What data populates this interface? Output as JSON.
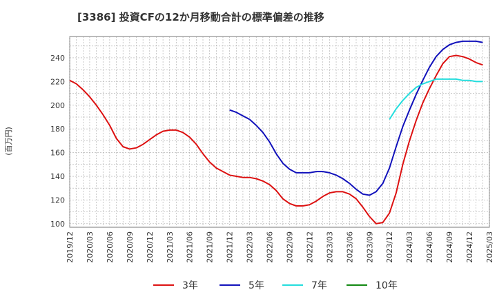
{
  "chart_data": {
    "type": "line",
    "title": "[3386]  投資CFの12か月移動合計の標準偏差の推移",
    "ylabel": "(百万円)",
    "xlabel": "",
    "ylim": [
      97,
      258
    ],
    "yticks": [
      100,
      120,
      140,
      160,
      180,
      200,
      220,
      240
    ],
    "xticks": [
      "2019/12",
      "2020/03",
      "2020/06",
      "2020/09",
      "2020/12",
      "2021/03",
      "2021/06",
      "2021/09",
      "2021/12",
      "2022/03",
      "2022/06",
      "2022/09",
      "2022/12",
      "2023/03",
      "2023/06",
      "2023/09",
      "2023/12",
      "2024/03",
      "2024/06",
      "2024/09",
      "2024/12",
      "2025/03"
    ],
    "grid": true,
    "legend": "bottom",
    "series": [
      {
        "name": "3年",
        "color": "#dd1111",
        "points": [
          [
            "2019/12",
            221
          ],
          [
            "2020/01",
            218
          ],
          [
            "2020/02",
            213
          ],
          [
            "2020/03",
            207
          ],
          [
            "2020/04",
            200
          ],
          [
            "2020/05",
            192
          ],
          [
            "2020/06",
            183
          ],
          [
            "2020/07",
            172
          ],
          [
            "2020/08",
            165
          ],
          [
            "2020/09",
            163
          ],
          [
            "2020/10",
            164
          ],
          [
            "2020/11",
            167
          ],
          [
            "2020/12",
            171
          ],
          [
            "2021/01",
            175
          ],
          [
            "2021/02",
            178
          ],
          [
            "2021/03",
            179
          ],
          [
            "2021/04",
            179
          ],
          [
            "2021/05",
            177
          ],
          [
            "2021/06",
            173
          ],
          [
            "2021/07",
            167
          ],
          [
            "2021/08",
            159
          ],
          [
            "2021/09",
            152
          ],
          [
            "2021/10",
            147
          ],
          [
            "2021/11",
            144
          ],
          [
            "2021/12",
            141
          ],
          [
            "2022/01",
            140
          ],
          [
            "2022/02",
            139
          ],
          [
            "2022/03",
            139
          ],
          [
            "2022/04",
            138
          ],
          [
            "2022/05",
            136
          ],
          [
            "2022/06",
            133
          ],
          [
            "2022/07",
            128
          ],
          [
            "2022/08",
            121
          ],
          [
            "2022/09",
            117
          ],
          [
            "2022/10",
            115
          ],
          [
            "2022/11",
            115
          ],
          [
            "2022/12",
            116
          ],
          [
            "2023/01",
            119
          ],
          [
            "2023/02",
            123
          ],
          [
            "2023/03",
            126
          ],
          [
            "2023/04",
            127
          ],
          [
            "2023/05",
            127
          ],
          [
            "2023/06",
            125
          ],
          [
            "2023/07",
            121
          ],
          [
            "2023/08",
            114
          ],
          [
            "2023/09",
            106
          ],
          [
            "2023/10",
            100
          ],
          [
            "2023/11",
            101
          ],
          [
            "2023/12",
            109
          ],
          [
            "2024/01",
            126
          ],
          [
            "2024/02",
            150
          ],
          [
            "2024/03",
            170
          ],
          [
            "2024/04",
            187
          ],
          [
            "2024/05",
            202
          ],
          [
            "2024/06",
            214
          ],
          [
            "2024/07",
            225
          ],
          [
            "2024/08",
            235
          ],
          [
            "2024/09",
            241
          ],
          [
            "2024/10",
            242
          ],
          [
            "2024/11",
            241
          ],
          [
            "2024/12",
            239
          ],
          [
            "2025/01",
            236
          ],
          [
            "2025/02",
            234
          ]
        ]
      },
      {
        "name": "5年",
        "color": "#1111bb",
        "points": [
          [
            "2021/12",
            196
          ],
          [
            "2022/01",
            194
          ],
          [
            "2022/02",
            191
          ],
          [
            "2022/03",
            188
          ],
          [
            "2022/04",
            183
          ],
          [
            "2022/05",
            177
          ],
          [
            "2022/06",
            169
          ],
          [
            "2022/07",
            159
          ],
          [
            "2022/08",
            151
          ],
          [
            "2022/09",
            146
          ],
          [
            "2022/10",
            143
          ],
          [
            "2022/11",
            143
          ],
          [
            "2022/12",
            143
          ],
          [
            "2023/01",
            144
          ],
          [
            "2023/02",
            144
          ],
          [
            "2023/03",
            143
          ],
          [
            "2023/04",
            141
          ],
          [
            "2023/05",
            138
          ],
          [
            "2023/06",
            134
          ],
          [
            "2023/07",
            129
          ],
          [
            "2023/08",
            125
          ],
          [
            "2023/09",
            124
          ],
          [
            "2023/10",
            127
          ],
          [
            "2023/11",
            134
          ],
          [
            "2023/12",
            147
          ],
          [
            "2024/01",
            165
          ],
          [
            "2024/02",
            182
          ],
          [
            "2024/03",
            196
          ],
          [
            "2024/04",
            209
          ],
          [
            "2024/05",
            221
          ],
          [
            "2024/06",
            232
          ],
          [
            "2024/07",
            241
          ],
          [
            "2024/08",
            247
          ],
          [
            "2024/09",
            251
          ],
          [
            "2024/10",
            253
          ],
          [
            "2024/11",
            254
          ],
          [
            "2024/12",
            254
          ],
          [
            "2025/01",
            254
          ],
          [
            "2025/02",
            253
          ]
        ]
      },
      {
        "name": "7年",
        "color": "#22dddd",
        "points": [
          [
            "2023/12",
            188
          ],
          [
            "2024/01",
            197
          ],
          [
            "2024/02",
            204
          ],
          [
            "2024/03",
            210
          ],
          [
            "2024/04",
            215
          ],
          [
            "2024/05",
            218
          ],
          [
            "2024/06",
            220
          ],
          [
            "2024/07",
            222
          ],
          [
            "2024/08",
            222
          ],
          [
            "2024/09",
            222
          ],
          [
            "2024/10",
            222
          ],
          [
            "2024/11",
            221
          ],
          [
            "2024/12",
            221
          ],
          [
            "2025/01",
            220
          ],
          [
            "2025/02",
            220
          ]
        ]
      },
      {
        "name": "10年",
        "color": "#118811",
        "points": []
      }
    ]
  }
}
